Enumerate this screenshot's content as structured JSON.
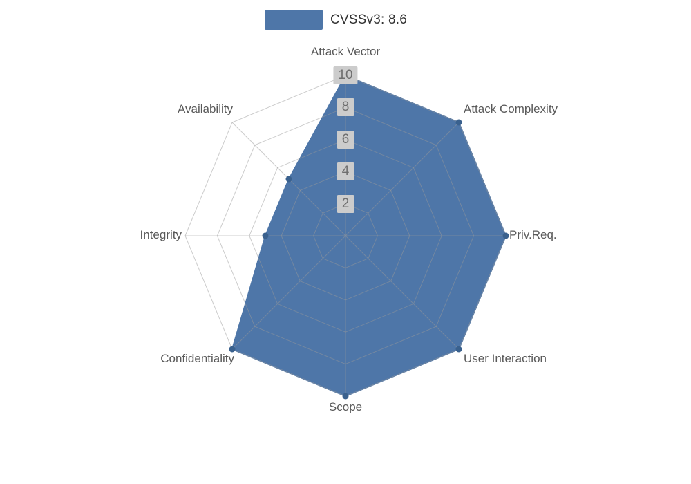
{
  "legend": {
    "label": "CVSSv3: 8.6"
  },
  "chart_data": {
    "type": "radar",
    "title": "CVSSv3: 8.6",
    "legend_position": "top",
    "axes": [
      "Attack Vector",
      "Attack Complexity",
      "Priv.Req.",
      "User Interaction",
      "Scope",
      "Confidentiality",
      "Integrity",
      "Availability"
    ],
    "series": [
      {
        "name": "CVSSv3: 8.6",
        "values": [
          10,
          10,
          10,
          10,
          10,
          10,
          5,
          5
        ]
      }
    ],
    "scale": {
      "min": 0,
      "max": 10,
      "ticks": [
        2,
        4,
        6,
        8,
        10
      ]
    },
    "grid": true,
    "colors": {
      "series_fill": "#4e76a8",
      "series_marker": "#3a618e",
      "grid_line": "#999999",
      "tick_box_bg": "#cccccc",
      "tick_text": "#6e6e6e",
      "axis_label_text": "#595959"
    }
  }
}
